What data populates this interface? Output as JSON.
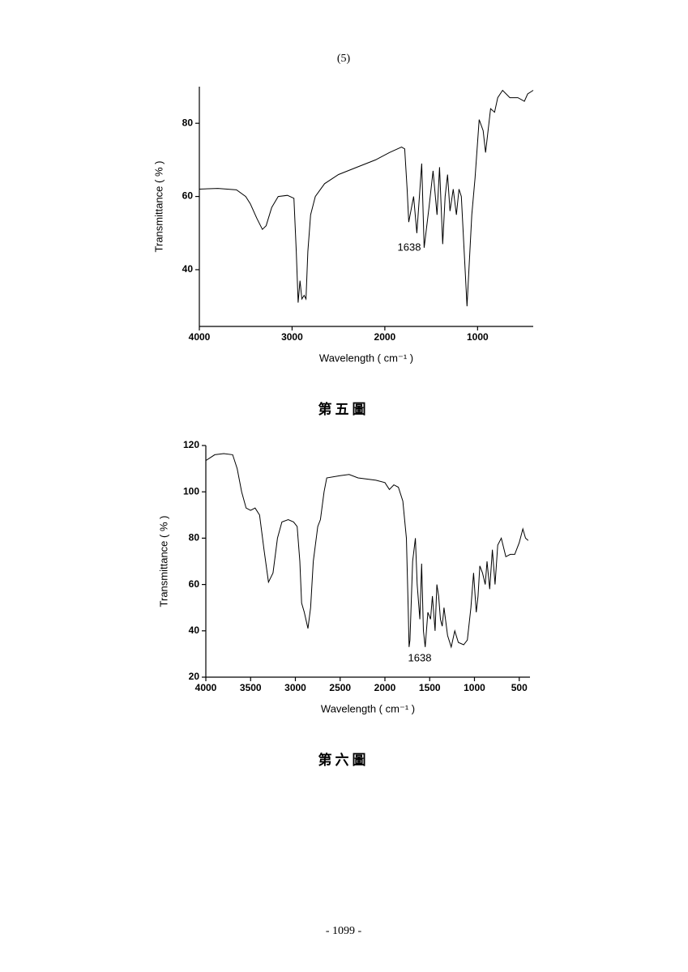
{
  "header": "(5)",
  "footer": "- 1099 -",
  "chart_data": [
    {
      "type": "line",
      "caption": "第五圖",
      "x_label": "Wavelength ( cm⁻¹ )",
      "y_label": "Transmittance ( % )",
      "annotation": "1638",
      "color": "#000000",
      "xlim": [
        4000,
        400
      ],
      "xticks": [
        4000,
        3000,
        2000,
        1000
      ],
      "ylim": [
        24.5,
        90
      ],
      "yticks": [
        40,
        60,
        80
      ],
      "x": [
        4000,
        3800,
        3600,
        3500,
        3450,
        3380,
        3320,
        3280,
        3220,
        3150,
        3050,
        2980,
        2955,
        2935,
        2915,
        2895,
        2870,
        2850,
        2830,
        2800,
        2750,
        2650,
        2500,
        2300,
        2100,
        1950,
        1820,
        1786,
        1760,
        1742,
        1690,
        1655,
        1602,
        1576,
        1524,
        1480,
        1437,
        1410,
        1376,
        1350,
        1324,
        1297,
        1262,
        1228,
        1200,
        1175,
        1114,
        1062,
        1027,
        983,
        940,
        914,
        860,
        817,
        783,
        730,
        652,
        565,
        495,
        460,
        400
      ],
      "values": [
        62,
        62.2,
        61.8,
        60,
        58,
        54,
        51,
        52,
        57,
        60,
        60.3,
        59.5,
        45,
        31,
        37,
        32,
        33,
        32,
        45,
        55,
        60,
        63.5,
        66,
        68,
        70,
        72,
        73.5,
        73,
        62,
        53,
        60,
        50,
        69,
        46,
        57,
        67,
        55,
        68,
        47,
        60,
        66,
        56,
        62,
        55,
        62,
        60,
        30,
        55,
        65,
        81,
        78,
        72,
        84,
        83,
        87,
        89,
        87,
        87,
        86,
        88,
        89
      ]
    },
    {
      "type": "line",
      "caption": "第六圖",
      "x_label": "Wavelength ( cm⁻¹ )",
      "y_label": "Transmittance ( % )",
      "annotation": "1638",
      "color": "#000000",
      "xlim": [
        4000,
        380
      ],
      "xticks": [
        4000,
        3500,
        3000,
        2500,
        2000,
        1500,
        1000,
        500
      ],
      "ylim": [
        20,
        120
      ],
      "yticks": [
        20,
        40,
        60,
        80,
        100,
        120
      ],
      "x": [
        4000,
        3900,
        3800,
        3700,
        3650,
        3600,
        3550,
        3500,
        3450,
        3400,
        3350,
        3300,
        3250,
        3200,
        3150,
        3080,
        3020,
        2980,
        2950,
        2930,
        2900,
        2860,
        2830,
        2800,
        2750,
        2720,
        2680,
        2650,
        2500,
        2400,
        2300,
        2100,
        2000,
        1950,
        1900,
        1850,
        1800,
        1760,
        1740,
        1730,
        1720,
        1690,
        1660,
        1640,
        1610,
        1590,
        1570,
        1550,
        1520,
        1490,
        1470,
        1440,
        1420,
        1400,
        1380,
        1360,
        1340,
        1300,
        1260,
        1220,
        1180,
        1120,
        1080,
        1040,
        1010,
        980,
        960,
        940,
        910,
        880,
        860,
        830,
        800,
        770,
        740,
        700,
        650,
        600,
        550,
        500,
        460,
        430,
        400
      ],
      "values": [
        113.5,
        116,
        116.5,
        116,
        110,
        100,
        93,
        92,
        93,
        90,
        75,
        61,
        65,
        80,
        87,
        88,
        87,
        85,
        70,
        52,
        48,
        41,
        50,
        70,
        85,
        88,
        100,
        106,
        107,
        107.5,
        106,
        105,
        104,
        101,
        103,
        102,
        96,
        80,
        50,
        33,
        36,
        70,
        80,
        60,
        45,
        69,
        40,
        33,
        48,
        45,
        55,
        40,
        60,
        55,
        45,
        42,
        50,
        38,
        33,
        40,
        35,
        34,
        36,
        50,
        65,
        48,
        55,
        68,
        65,
        60,
        70,
        58,
        75,
        60,
        77,
        80,
        72,
        73,
        73,
        78,
        84,
        80,
        79
      ]
    }
  ]
}
